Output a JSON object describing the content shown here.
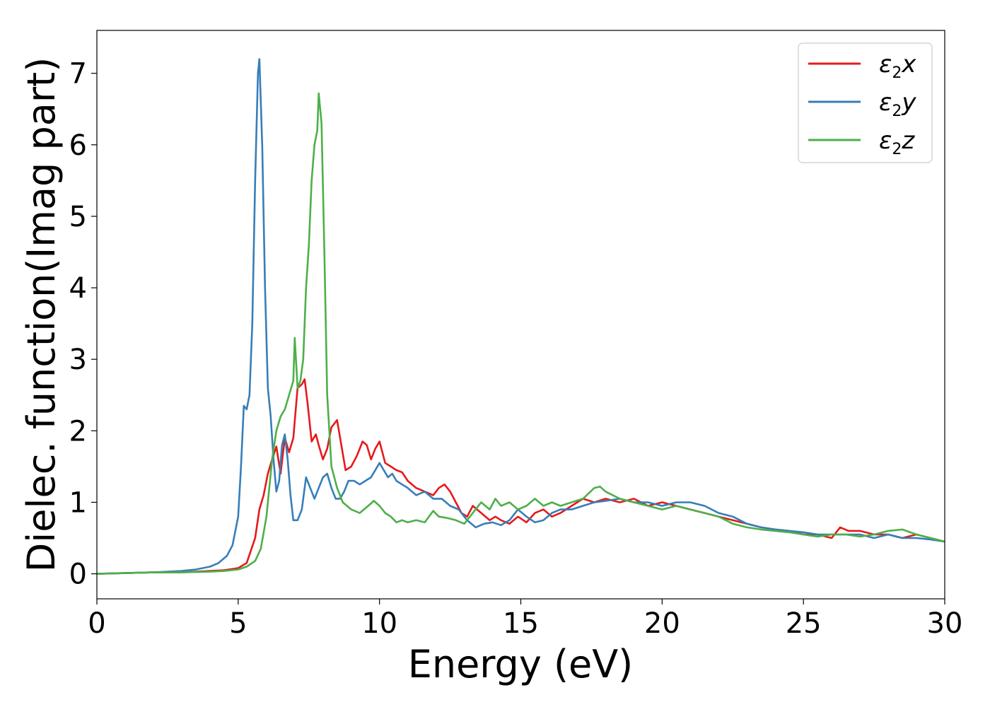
{
  "chart_data": {
    "type": "line",
    "xlabel": "Energy (eV)",
    "ylabel": "Dielec. function(Imag part)",
    "xlim": [
      0,
      30
    ],
    "ylim": [
      -0.35,
      7.6
    ],
    "xticks": [
      0,
      5,
      10,
      15,
      20,
      25,
      30
    ],
    "yticks": [
      0,
      1,
      2,
      3,
      4,
      5,
      6,
      7
    ],
    "grid": false,
    "legend_position": "top-right",
    "series": [
      {
        "name": "ε2x",
        "legend": {
          "main": "ε",
          "sub": "2",
          "tail": "x"
        },
        "color": "#e41a1c",
        "x": [
          0,
          1,
          2,
          3,
          4,
          4.5,
          5,
          5.3,
          5.6,
          5.75,
          5.9,
          6.05,
          6.2,
          6.35,
          6.5,
          6.65,
          6.8,
          6.95,
          7.1,
          7.25,
          7.35,
          7.45,
          7.6,
          7.75,
          7.85,
          8.0,
          8.15,
          8.3,
          8.5,
          8.65,
          8.8,
          9.0,
          9.2,
          9.4,
          9.55,
          9.7,
          9.85,
          10.0,
          10.2,
          10.4,
          10.6,
          10.8,
          11.0,
          11.3,
          11.6,
          11.9,
          12.1,
          12.3,
          12.5,
          12.7,
          12.9,
          13.1,
          13.3,
          13.6,
          13.9,
          14.1,
          14.3,
          14.6,
          14.9,
          15.2,
          15.5,
          15.8,
          16.1,
          16.4,
          16.8,
          17.2,
          17.6,
          18.0,
          18.5,
          19.0,
          19.5,
          20.0,
          20.5,
          21.0,
          21.5,
          22.0,
          22.5,
          23.0,
          23.5,
          24.0,
          24.5,
          25.0,
          25.5,
          26.0,
          26.3,
          26.6,
          27.0,
          27.5,
          28.0,
          28.5,
          29.0,
          29.5,
          30.0
        ],
        "values": [
          0.0,
          0.01,
          0.02,
          0.02,
          0.04,
          0.05,
          0.08,
          0.15,
          0.5,
          0.9,
          1.1,
          1.4,
          1.6,
          1.78,
          1.4,
          1.9,
          1.7,
          1.9,
          2.6,
          2.65,
          2.72,
          2.4,
          1.85,
          1.95,
          1.8,
          1.6,
          1.75,
          2.05,
          2.15,
          1.8,
          1.45,
          1.5,
          1.65,
          1.85,
          1.8,
          1.6,
          1.75,
          1.85,
          1.55,
          1.5,
          1.45,
          1.42,
          1.3,
          1.2,
          1.15,
          1.1,
          1.2,
          1.25,
          1.15,
          1.0,
          0.85,
          0.8,
          0.95,
          0.85,
          0.75,
          0.8,
          0.75,
          0.7,
          0.8,
          0.72,
          0.85,
          0.9,
          0.8,
          0.85,
          0.95,
          1.05,
          1.0,
          1.05,
          1.0,
          1.05,
          0.95,
          1.0,
          0.95,
          0.9,
          0.85,
          0.8,
          0.75,
          0.7,
          0.65,
          0.62,
          0.6,
          0.55,
          0.55,
          0.5,
          0.65,
          0.6,
          0.6,
          0.55,
          0.55,
          0.5,
          0.55,
          0.5,
          0.45
        ]
      },
      {
        "name": "ε2y",
        "legend": {
          "main": "ε",
          "sub": "2",
          "tail": "y"
        },
        "color": "#377eb8",
        "x": [
          0,
          1,
          2,
          3,
          3.5,
          4,
          4.3,
          4.6,
          4.8,
          5.0,
          5.1,
          5.2,
          5.3,
          5.4,
          5.5,
          5.6,
          5.7,
          5.75,
          5.85,
          5.95,
          6.05,
          6.15,
          6.25,
          6.35,
          6.45,
          6.55,
          6.65,
          6.75,
          6.85,
          6.95,
          7.1,
          7.25,
          7.4,
          7.55,
          7.7,
          7.85,
          8.0,
          8.15,
          8.3,
          8.45,
          8.6,
          8.75,
          8.9,
          9.1,
          9.3,
          9.5,
          9.7,
          9.85,
          10.0,
          10.15,
          10.3,
          10.45,
          10.6,
          10.8,
          11.0,
          11.3,
          11.6,
          11.9,
          12.2,
          12.5,
          12.8,
          13.1,
          13.4,
          13.7,
          14.0,
          14.3,
          14.6,
          14.9,
          15.2,
          15.5,
          15.8,
          16.1,
          16.4,
          16.8,
          17.2,
          17.6,
          18.0,
          18.5,
          19.0,
          19.5,
          20.0,
          20.5,
          21.0,
          21.5,
          22.0,
          22.5,
          23.0,
          23.5,
          24.0,
          24.5,
          25.0,
          25.5,
          26.0,
          26.5,
          27.0,
          27.5,
          28.0,
          28.5,
          29.0,
          29.5,
          30.0
        ],
        "values": [
          0.0,
          0.01,
          0.02,
          0.04,
          0.06,
          0.1,
          0.15,
          0.25,
          0.4,
          0.8,
          1.5,
          2.35,
          2.3,
          2.5,
          3.5,
          5.5,
          7.0,
          7.2,
          6.0,
          4.0,
          2.6,
          2.2,
          1.6,
          1.15,
          1.3,
          1.8,
          1.95,
          1.6,
          1.1,
          0.75,
          0.75,
          0.9,
          1.35,
          1.2,
          1.05,
          1.2,
          1.35,
          1.4,
          1.2,
          1.05,
          1.05,
          1.15,
          1.3,
          1.3,
          1.25,
          1.3,
          1.35,
          1.45,
          1.55,
          1.45,
          1.35,
          1.4,
          1.3,
          1.25,
          1.2,
          1.1,
          1.15,
          1.05,
          1.05,
          0.95,
          0.9,
          0.75,
          0.65,
          0.7,
          0.72,
          0.68,
          0.75,
          0.9,
          0.8,
          0.72,
          0.75,
          0.85,
          0.9,
          0.9,
          0.95,
          1.0,
          1.02,
          1.05,
          1.0,
          1.0,
          0.95,
          1.0,
          1.0,
          0.95,
          0.85,
          0.8,
          0.7,
          0.65,
          0.62,
          0.6,
          0.58,
          0.55,
          0.55,
          0.55,
          0.55,
          0.5,
          0.55,
          0.5,
          0.5,
          0.48,
          0.45
        ]
      },
      {
        "name": "ε2z",
        "legend": {
          "main": "ε",
          "sub": "2",
          "tail": "z"
        },
        "color": "#4daf4a",
        "x": [
          0,
          1,
          2,
          3,
          4,
          4.5,
          5,
          5.3,
          5.6,
          5.8,
          6.0,
          6.2,
          6.35,
          6.5,
          6.65,
          6.8,
          6.95,
          7.0,
          7.1,
          7.2,
          7.3,
          7.4,
          7.5,
          7.6,
          7.7,
          7.8,
          7.85,
          7.95,
          8.05,
          8.15,
          8.3,
          8.5,
          8.7,
          9.0,
          9.3,
          9.6,
          9.8,
          10.0,
          10.2,
          10.4,
          10.6,
          10.8,
          11.0,
          11.3,
          11.6,
          11.9,
          12.1,
          12.4,
          12.7,
          13.0,
          13.3,
          13.6,
          13.9,
          14.1,
          14.3,
          14.6,
          14.9,
          15.2,
          15.5,
          15.8,
          16.1,
          16.4,
          16.8,
          17.2,
          17.6,
          17.8,
          18.0,
          18.5,
          19.0,
          19.5,
          20.0,
          20.5,
          21.0,
          21.5,
          22.0,
          22.5,
          23.0,
          23.5,
          24.0,
          24.5,
          25.0,
          25.5,
          26.0,
          26.5,
          27.0,
          27.5,
          28.0,
          28.5,
          29.0,
          29.5,
          30.0
        ],
        "values": [
          0.0,
          0.01,
          0.02,
          0.02,
          0.03,
          0.04,
          0.06,
          0.1,
          0.18,
          0.35,
          0.8,
          1.6,
          2.0,
          2.2,
          2.3,
          2.5,
          2.7,
          3.3,
          2.6,
          2.7,
          3.0,
          4.0,
          4.6,
          5.5,
          6.0,
          6.2,
          6.72,
          6.3,
          4.5,
          2.5,
          1.5,
          1.2,
          1.0,
          0.9,
          0.85,
          0.95,
          1.02,
          0.95,
          0.85,
          0.8,
          0.72,
          0.75,
          0.72,
          0.75,
          0.72,
          0.88,
          0.8,
          0.78,
          0.75,
          0.7,
          0.85,
          1.0,
          0.9,
          1.05,
          0.95,
          1.0,
          0.9,
          0.95,
          1.05,
          0.95,
          1.0,
          0.95,
          1.0,
          1.05,
          1.2,
          1.22,
          1.15,
          1.05,
          1.0,
          0.95,
          0.9,
          0.95,
          0.9,
          0.85,
          0.8,
          0.7,
          0.65,
          0.62,
          0.6,
          0.58,
          0.55,
          0.52,
          0.55,
          0.55,
          0.52,
          0.55,
          0.6,
          0.62,
          0.55,
          0.5,
          0.45
        ]
      }
    ]
  }
}
